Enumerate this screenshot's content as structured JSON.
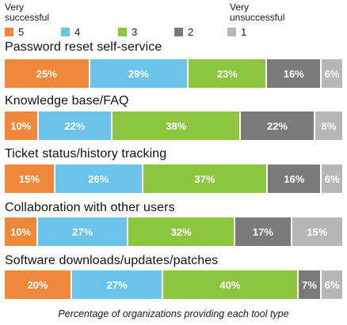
{
  "legend": {
    "left_label_line1": "Very",
    "left_label_line2": "successful",
    "right_label_line1": "Very",
    "right_label_line2": "unsuccessful",
    "items": [
      {
        "label": "5",
        "color": "#f0883a"
      },
      {
        "label": "4",
        "color": "#6cc3ea"
      },
      {
        "label": "3",
        "color": "#8cc63f"
      },
      {
        "label": "2",
        "color": "#7a7a7a"
      },
      {
        "label": "1",
        "color": "#b7b7b7"
      }
    ]
  },
  "caption": "Percentage of organizations providing each tool type",
  "chart_data": {
    "type": "bar",
    "stacked": true,
    "orientation": "horizontal",
    "categories": [
      "Password reset self-service",
      "Knowledge base/FAQ",
      "Ticket status/history tracking",
      "Collaboration with other users",
      "Software downloads/updates/patches"
    ],
    "series": [
      {
        "name": "5",
        "color": "#f0883a",
        "values": [
          25,
          10,
          15,
          10,
          20
        ]
      },
      {
        "name": "4",
        "color": "#6cc3ea",
        "values": [
          29,
          22,
          26,
          27,
          27
        ]
      },
      {
        "name": "3",
        "color": "#8cc63f",
        "values": [
          23,
          38,
          37,
          32,
          40
        ]
      },
      {
        "name": "2",
        "color": "#7a7a7a",
        "values": [
          16,
          22,
          16,
          17,
          7
        ]
      },
      {
        "name": "1",
        "color": "#b7b7b7",
        "values": [
          6,
          8,
          6,
          15,
          6
        ]
      }
    ],
    "data_label_suffix": "%",
    "legend_position": "top"
  }
}
